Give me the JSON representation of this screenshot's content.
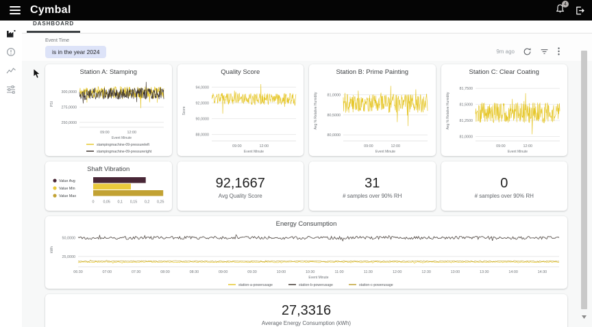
{
  "colors": {
    "accent_yellow": "#e6c72b",
    "dark_series": "#3f3630",
    "olive_series": "#bfa12f",
    "maroon_bar": "#482636",
    "chip_bg": "#dde3f8",
    "topbar_bg": "#050505"
  },
  "icons": {
    "menu": "hamburger-icon",
    "notifications": "bell-icon",
    "sign_out": "logout-icon",
    "refresh": "circular-arrow-icon",
    "dashboard_filters": "filter-lines-icon",
    "more": "kebab-vertical-dots-icon"
  },
  "topbar": {
    "logo": "Cymbal",
    "notification_count": "4"
  },
  "sidebar": {
    "items": [
      {
        "id": "factory",
        "icon": "factory-icon",
        "active": true
      },
      {
        "id": "alerts",
        "icon": "info-circle-icon",
        "active": false
      },
      {
        "id": "trends",
        "icon": "trend-line-icon",
        "active": false
      },
      {
        "id": "controls",
        "icon": "tune-sliders-icon",
        "active": false
      }
    ]
  },
  "tabbar": {
    "active_tab": "DASHBOARD"
  },
  "filters": {
    "label": "Event Time",
    "value": "is in the year 2024"
  },
  "toolbar": {
    "last_updated": "9m ago"
  },
  "kpis": [
    {
      "value": "92,1667",
      "label": "Avg Quality Score"
    },
    {
      "value": "31",
      "label": "# samples over 90% RH"
    },
    {
      "value": "0",
      "label": "# samples over 90% RH"
    },
    {
      "value": "27,3316",
      "label": "Average Energy Consumption (kWh)"
    }
  ],
  "chart_data": [
    {
      "id": "station-a",
      "type": "line",
      "title": "Station A: Stamping",
      "ylabel": "PSI",
      "xlabel": "Event Minute",
      "ylim": [
        242000,
        318000
      ],
      "yticks": [
        {
          "label": "300,0000",
          "value": 300000
        },
        {
          "label": "275,0000",
          "value": 275000
        },
        {
          "label": "250,0000",
          "value": 250000
        }
      ],
      "xticks": [
        "09:00",
        "12:00"
      ],
      "xtick_pos": [
        0.3,
        0.62
      ],
      "legend": "rows",
      "points": 250,
      "series": [
        {
          "name": "stampingmachine-09-pressureleft",
          "color": "#e6c72b",
          "approx_mean": 299000,
          "approx_spread": 10000,
          "seed": 11
        },
        {
          "name": "stampingmachine-09-pressureright",
          "color": "#3f3630",
          "approx_mean": 297000,
          "approx_spread": 9500,
          "seed": 22
        }
      ]
    },
    {
      "id": "quality-score",
      "type": "line",
      "title": "Quality Score",
      "ylabel": "Score",
      "xlabel": "Event Minute",
      "ylim": [
        87.2,
        94.8
      ],
      "yticks": [
        {
          "label": "94,0000",
          "value": 94
        },
        {
          "label": "92,0000",
          "value": 92
        },
        {
          "label": "90,0000",
          "value": 90
        },
        {
          "label": "88,0000",
          "value": 88
        }
      ],
      "xticks": [
        "09:00",
        "12:00"
      ],
      "xtick_pos": [
        0.3,
        0.62
      ],
      "legend": "none",
      "points": 260,
      "series": [
        {
          "name": "quality-score",
          "color": "#e6c72b",
          "approx_mean": 92.5,
          "approx_spread": 0.75,
          "seed": 33
        }
      ]
    },
    {
      "id": "station-b",
      "type": "line",
      "title": "Station B: Prime Painting",
      "ylabel": "Avg % Relative Humidity",
      "xlabel": "Event Minute",
      "ylim": [
        79.85,
        81.35
      ],
      "yticks": [
        {
          "label": "81,0000",
          "value": 81.0
        },
        {
          "label": "80,5000",
          "value": 80.5
        },
        {
          "label": "80,0000",
          "value": 80.0
        }
      ],
      "xticks": [
        "09:00",
        "12:00"
      ],
      "xtick_pos": [
        0.3,
        0.62
      ],
      "legend": "none",
      "points": 260,
      "series": [
        {
          "name": "humidity-station-b",
          "color": "#e6c72b",
          "approx_mean": 80.78,
          "approx_spread": 0.23,
          "seed": 44
        }
      ]
    },
    {
      "id": "station-c",
      "type": "line",
      "title": "Station C: Clear Coating",
      "ylabel": "Avg % Relative Humidity",
      "xlabel": "Event Minute",
      "ylim": [
        80.93,
        81.87
      ],
      "yticks": [
        {
          "label": "81,7500",
          "value": 81.75
        },
        {
          "label": "81,5000",
          "value": 81.5
        },
        {
          "label": "81,2500",
          "value": 81.25
        },
        {
          "label": "81,0000",
          "value": 81.0
        }
      ],
      "xticks": [
        "09:00",
        "12:00"
      ],
      "xtick_pos": [
        0.3,
        0.62
      ],
      "legend": "none",
      "points": 260,
      "series": [
        {
          "name": "humidity-station-c",
          "color": "#e6c72b",
          "approx_mean": 81.37,
          "approx_spread": 0.16,
          "seed": 55
        }
      ]
    },
    {
      "id": "shaft-vibration",
      "type": "bar-horizontal",
      "title": "Shaft Vibration",
      "categories": [
        "Value Avg",
        "Value Min",
        "Value Max"
      ],
      "values": [
        0.195,
        0.14,
        0.26
      ],
      "colors": [
        "#482636",
        "#eac93c",
        "#c2a233"
      ],
      "xlim": [
        0,
        0.262
      ],
      "xticks": [
        {
          "label": "0",
          "value": 0
        },
        {
          "label": "0,05",
          "value": 0.05
        },
        {
          "label": "0,1",
          "value": 0.1
        },
        {
          "label": "0,15",
          "value": 0.15
        },
        {
          "label": "0,2",
          "value": 0.2
        },
        {
          "label": "0,25",
          "value": 0.25
        }
      ]
    },
    {
      "id": "energy",
      "type": "line",
      "title": "Energy Consumption",
      "ylabel": "kWh",
      "xlabel": "Event Minute",
      "ylim": [
        11000,
        57000
      ],
      "margin_left": 44,
      "yticks": [
        {
          "label": "50,0000",
          "value": 50000
        },
        {
          "label": "25,0000",
          "value": 25000
        }
      ],
      "xticks": [
        "06:30",
        "07:00",
        "07:30",
        "08:00",
        "08:30",
        "09:00",
        "09:30",
        "10:00",
        "10:30",
        "11:00",
        "11:30",
        "12:00",
        "12:30",
        "13:00",
        "13:30",
        "14:00",
        "14:30"
      ],
      "legend": "row",
      "points": 470,
      "series": [
        {
          "name": "station-a-powerusage",
          "color": "#e6c72b",
          "approx_mean": 17300,
          "approx_spread": 650,
          "seed": 66
        },
        {
          "name": "station-b-powerusage",
          "color": "#3f3630",
          "approx_mean": 50000,
          "approx_spread": 2100,
          "seed": 77
        },
        {
          "name": "station-c-powerusage",
          "color": "#bfa12f",
          "approx_mean": 18600,
          "approx_spread": 550,
          "seed": 88
        }
      ]
    }
  ]
}
